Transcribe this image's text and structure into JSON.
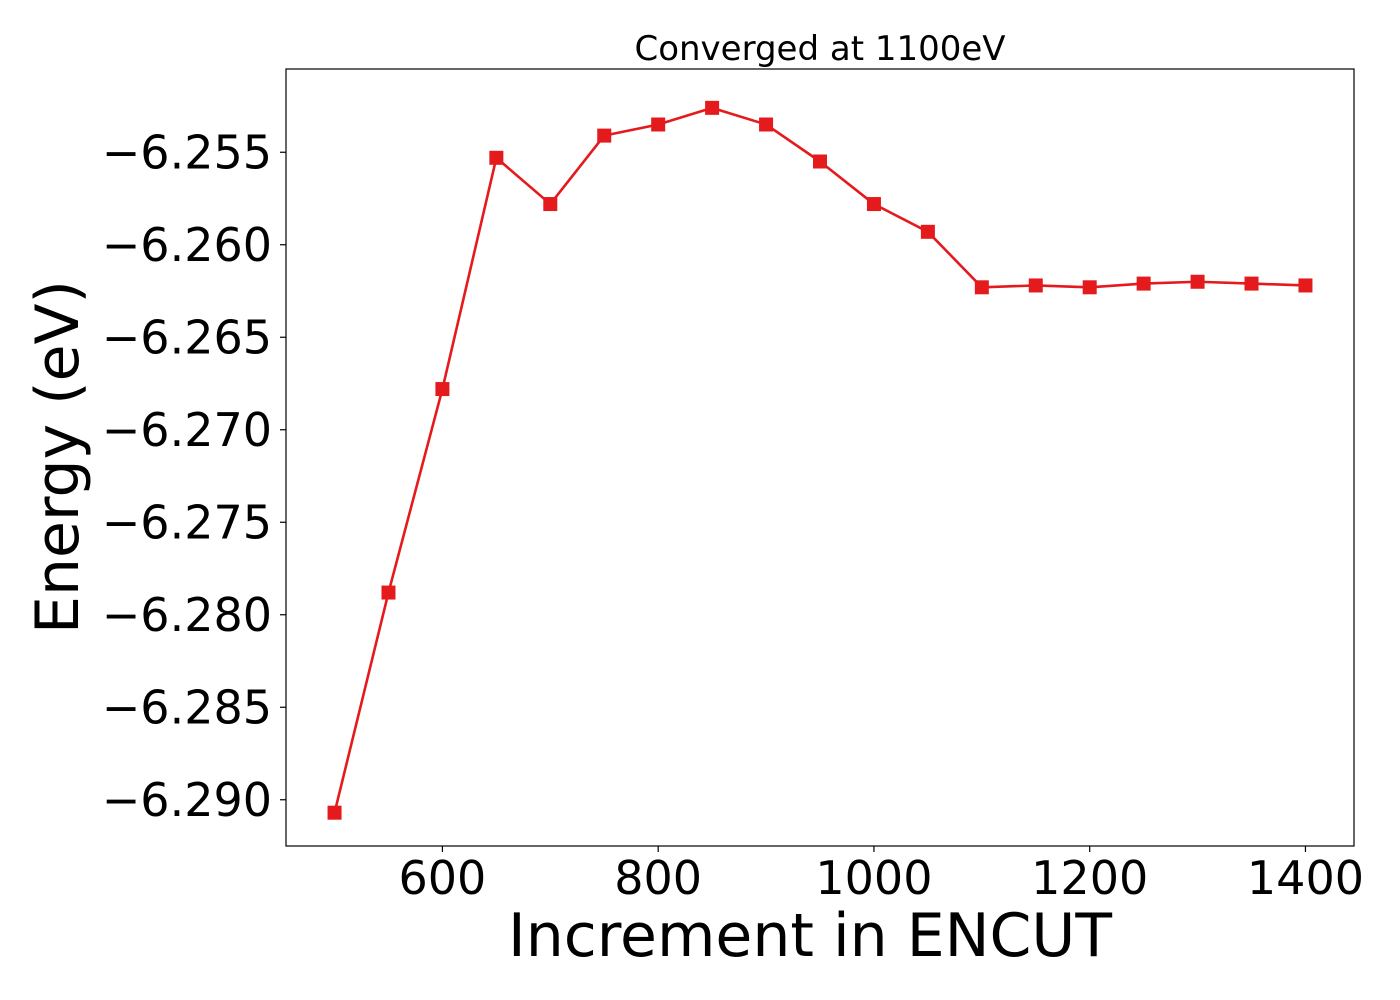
{
  "chart_data": {
    "type": "line",
    "title": "Converged at 1100eV",
    "xlabel": "Increment in ENCUT",
    "ylabel": "Energy (eV)",
    "xlim": [
      455,
      1445
    ],
    "ylim": [
      -6.2925,
      -6.2505
    ],
    "x_ticks": [
      600,
      800,
      1000,
      1200,
      1400
    ],
    "x_tick_labels": [
      "600",
      "800",
      "1000",
      "1200",
      "1400"
    ],
    "y_ticks": [
      -6.29,
      -6.285,
      -6.28,
      -6.275,
      -6.27,
      -6.265,
      -6.26,
      -6.255
    ],
    "y_tick_labels": [
      "−6.290",
      "−6.285",
      "−6.280",
      "−6.275",
      "−6.270",
      "−6.265",
      "−6.260",
      "−6.255"
    ],
    "grid": false,
    "series": [
      {
        "color": "#e41a1c",
        "marker": "square",
        "x": [
          500,
          550,
          600,
          650,
          700,
          750,
          800,
          850,
          900,
          950,
          1000,
          1050,
          1100,
          1150,
          1200,
          1250,
          1300,
          1350,
          1400
        ],
        "y": [
          -6.2907,
          -6.2788,
          -6.2678,
          -6.2553,
          -6.2578,
          -6.2541,
          -6.2535,
          -6.2526,
          -6.2535,
          -6.2555,
          -6.2578,
          -6.2593,
          -6.2623,
          -6.2622,
          -6.2623,
          -6.2621,
          -6.262,
          -6.2621,
          -6.2622
        ]
      }
    ]
  }
}
